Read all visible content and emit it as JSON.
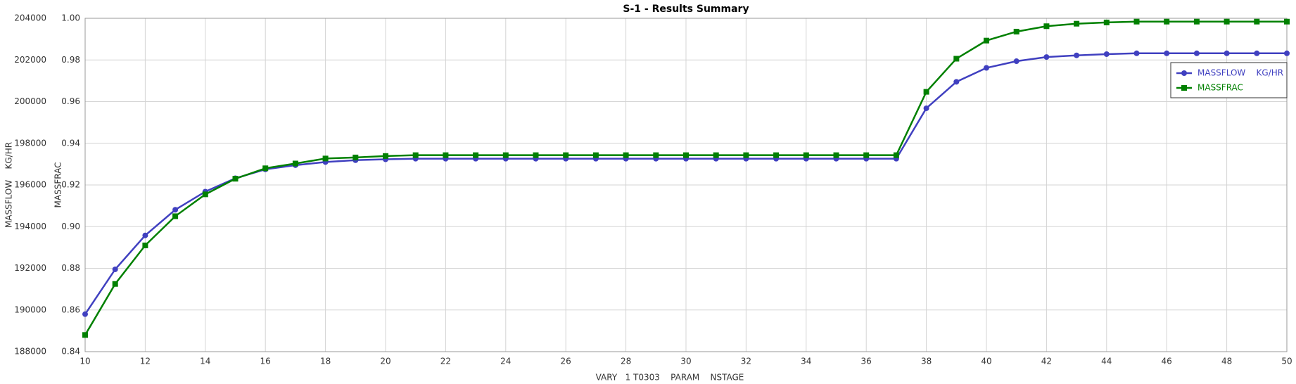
{
  "chart_data": {
    "type": "line",
    "title": "S-1 - Results Summary",
    "x_label": "VARY   1 T0303    PARAM    NSTAGE",
    "y_label": "MASSFLOW    KG/HR",
    "y2_label": "MASSFRAC",
    "x": [
      10,
      11,
      12,
      13,
      14,
      15,
      16,
      17,
      18,
      19,
      20,
      21,
      22,
      23,
      24,
      25,
      26,
      27,
      28,
      29,
      30,
      31,
      32,
      33,
      34,
      35,
      36,
      37,
      38,
      39,
      40,
      41,
      42,
      43,
      44,
      45,
      46,
      47,
      48,
      49,
      50
    ],
    "series": [
      {
        "name": "MASSFLOW    KG/HR",
        "color": "#4040c0",
        "marker": "circle",
        "values": [
          189800,
          191950,
          193580,
          194810,
          195680,
          196320,
          196750,
          196950,
          197100,
          197190,
          197230,
          197260,
          197260,
          197260,
          197260,
          197260,
          197260,
          197260,
          197260,
          197260,
          197260,
          197260,
          197260,
          197260,
          197260,
          197260,
          197260,
          197260,
          199680,
          200950,
          201620,
          201940,
          202140,
          202220,
          202280,
          202320,
          202320,
          202320,
          202320,
          202320,
          202320
        ]
      },
      {
        "name": "MASSFRAC",
        "color": "#008000",
        "marker": "square",
        "axis": "y2",
        "values": [
          0.848,
          0.8725,
          0.891,
          0.905,
          0.9155,
          0.923,
          0.928,
          0.9303,
          0.9327,
          0.9332,
          0.9339,
          0.9343,
          0.9343,
          0.9343,
          0.9343,
          0.9343,
          0.9343,
          0.9343,
          0.9343,
          0.9343,
          0.9343,
          0.9343,
          0.9343,
          0.9343,
          0.9343,
          0.9343,
          0.9343,
          0.9343,
          0.9647,
          0.9806,
          0.9893,
          0.9936,
          0.9962,
          0.9974,
          0.998,
          0.9984,
          0.9984,
          0.9984,
          0.9984,
          0.9984,
          0.9984
        ]
      }
    ],
    "xlim": [
      10,
      50
    ],
    "xticks": [
      10,
      12,
      14,
      16,
      18,
      20,
      22,
      24,
      26,
      28,
      30,
      32,
      34,
      36,
      38,
      40,
      42,
      44,
      46,
      48,
      50
    ],
    "ylim": [
      188000,
      204000
    ],
    "yticks": [
      188000,
      190000,
      192000,
      194000,
      196000,
      198000,
      200000,
      202000,
      204000
    ],
    "y2lim": [
      0.84,
      1.0
    ],
    "y2ticks": [
      {
        "value": 0.84,
        "label": "0.84"
      },
      {
        "value": 0.86,
        "label": "0.86"
      },
      {
        "value": 0.88,
        "label": "0.88"
      },
      {
        "value": 0.9,
        "label": "0.90"
      },
      {
        "value": 0.92,
        "label": "0.92"
      },
      {
        "value": 0.94,
        "label": "0.94"
      },
      {
        "value": 0.96,
        "label": "0.96"
      },
      {
        "value": 0.98,
        "label": "0.98"
      },
      {
        "value": 1.0,
        "label": "1.00"
      }
    ],
    "grid": true
  }
}
